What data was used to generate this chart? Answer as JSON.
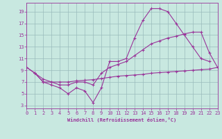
{
  "bg_color": "#c8e8e0",
  "line_color": "#993399",
  "grid_color": "#99bbbb",
  "xlabel": "Windchill (Refroidissement éolien,°C)",
  "xlim": [
    0,
    23
  ],
  "ylim": [
    2.5,
    20.5
  ],
  "yticks": [
    3,
    5,
    7,
    9,
    11,
    13,
    15,
    17,
    19
  ],
  "xticks": [
    0,
    1,
    2,
    3,
    4,
    5,
    6,
    7,
    8,
    9,
    10,
    11,
    12,
    13,
    14,
    15,
    16,
    17,
    18,
    19,
    20,
    21,
    22,
    23
  ],
  "line1_x": [
    0,
    1,
    2,
    3,
    4,
    5,
    6,
    7,
    8,
    9,
    10,
    11,
    12,
    13,
    14,
    15,
    16,
    17,
    18,
    19,
    20,
    21,
    22
  ],
  "line1_y": [
    9.5,
    8.5,
    7.0,
    6.5,
    6.0,
    5.0,
    6.0,
    5.5,
    3.5,
    6.0,
    10.5,
    10.5,
    11.0,
    14.5,
    17.5,
    19.5,
    19.5,
    19.0,
    17.0,
    15.0,
    13.0,
    11.0,
    10.5
  ],
  "line2_x": [
    1,
    2,
    3,
    4,
    5,
    6,
    7,
    8,
    9,
    10,
    11,
    12,
    13,
    14,
    15,
    16,
    17,
    18,
    19,
    20,
    21,
    22,
    23
  ],
  "line2_y": [
    8.5,
    7.5,
    7.0,
    7.0,
    7.0,
    7.2,
    7.3,
    7.4,
    7.6,
    7.8,
    8.0,
    8.1,
    8.2,
    8.3,
    8.5,
    8.6,
    8.7,
    8.8,
    8.9,
    9.0,
    9.1,
    9.2,
    9.5
  ],
  "line3_x": [
    0,
    1,
    2,
    3,
    4,
    5,
    6,
    7,
    8,
    9,
    10,
    11,
    12,
    13,
    14,
    15,
    16,
    17,
    18,
    19,
    20,
    21,
    22,
    23
  ],
  "line3_y": [
    9.5,
    8.5,
    7.0,
    7.0,
    6.5,
    6.5,
    7.0,
    7.0,
    6.5,
    8.5,
    9.5,
    10.0,
    10.5,
    11.5,
    12.5,
    13.5,
    14.0,
    14.5,
    14.8,
    15.2,
    15.5,
    15.5,
    12.0,
    9.5
  ]
}
